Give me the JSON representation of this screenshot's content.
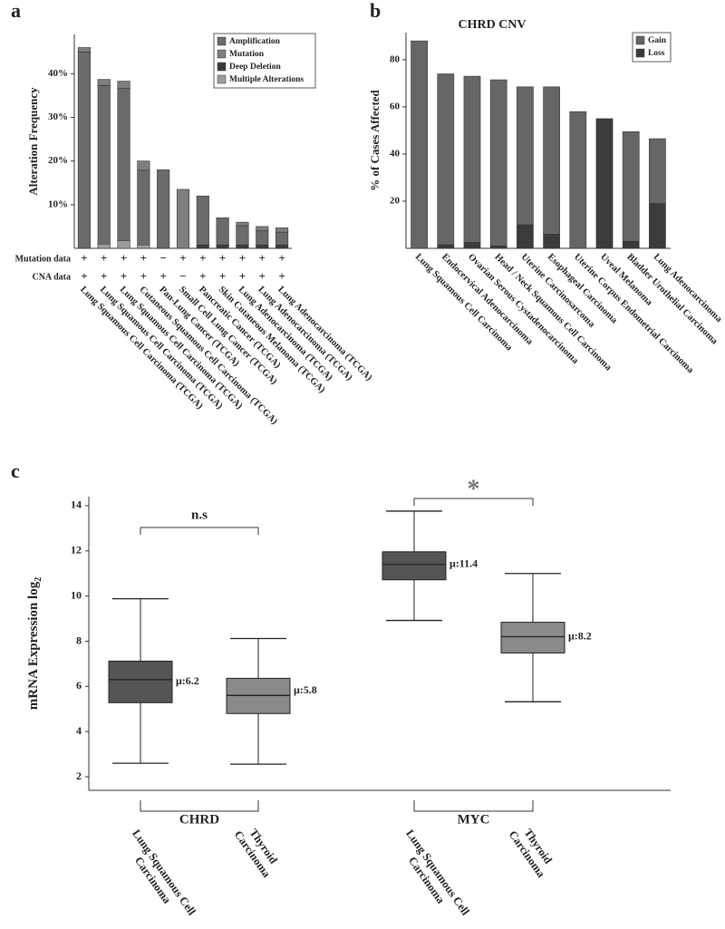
{
  "chart_data": [
    {
      "type": "stacked_bar",
      "panel": "a",
      "ylabel": "Alteration Frequency",
      "categories": [
        "Lung Squamous Cell Carcinoma (TCGA)",
        "Lung Squamous Cell Carcinoma (TCGA)",
        "Lung Squamous Cell Carcinoma (TCGA)",
        "Cutaneous Squamous Cell Carcinoma (TCGA)",
        "Pan-Lung Cancer (TCGA)",
        "Small Cell Lung Cancer (TCGA)",
        "Pancreatic Cancer (TCGA)",
        "Skin Cutaneous Melanoma (TCGA)",
        "Lung Adenocarcinoma (TCGA)",
        "Lung Adenocarcinoma (TCGA)",
        "Lung Adenocarcinoma (TCGA)"
      ],
      "series": [
        {
          "name": "Amplification",
          "color": "#6b6b6b",
          "values": [
            45,
            36.3,
            34.9,
            17.1,
            18,
            0,
            11.2,
            6.2,
            4.4,
            3.2,
            2.9
          ]
        },
        {
          "name": "Mutation",
          "color": "#7e7e7e",
          "values": [
            1,
            1.4,
            1.6,
            2.1,
            0,
            13.5,
            0,
            0,
            0.8,
            1,
            1
          ]
        },
        {
          "name": "Deep Deletion",
          "color": "#3c3c3c",
          "values": [
            0,
            0,
            0,
            0,
            0,
            0,
            0.8,
            0.8,
            0.8,
            0.8,
            0.8
          ]
        },
        {
          "name": "Multiple Alterations",
          "color": "#9c9c9c",
          "values": [
            0,
            1,
            1.8,
            0.8,
            0,
            0,
            0,
            0,
            0,
            0,
            0
          ]
        }
      ],
      "ylim": [
        0,
        49
      ],
      "yticks": [
        {
          "value": 10,
          "label": "10%"
        },
        {
          "value": 20,
          "label": "20%"
        },
        {
          "value": 30,
          "label": "30%"
        },
        {
          "value": 40,
          "label": "40%"
        }
      ],
      "annotation_rows": [
        {
          "label": "Mutation data",
          "marks": [
            "+",
            "+",
            "+",
            "+",
            "−",
            "+",
            "+",
            "+",
            "+",
            "+",
            "+"
          ]
        },
        {
          "label": "CNA data",
          "marks": [
            "+",
            "+",
            "+",
            "+",
            "+",
            "−",
            "+",
            "+",
            "+",
            "+",
            "+"
          ]
        }
      ],
      "legend": "upper right"
    },
    {
      "type": "stacked_bar",
      "panel": "b",
      "title": "CHRD CNV",
      "ylabel": "% of Cases Affected",
      "categories": [
        "Lung Squamous Cell Carcinoma",
        "Endocervical Adenocarcinoma",
        "Ovarian Serous Cystadenocarcinoma",
        "Head / Neck Squamous Cell Carcinoma",
        "Uterine Carcinosarcoma",
        "Esophageal Carcinoma",
        "Uterine Corpus Endometrial Carcinoma",
        "Uveal Melanoma",
        "Bladder Urothelial Carcinoma",
        "Lung Adenocarcinoma"
      ],
      "series": [
        {
          "name": "Gain",
          "color": "#666666",
          "values": [
            88,
            72.5,
            70.5,
            70.5,
            58.5,
            62.5,
            58,
            0,
            46.5,
            27.5
          ]
        },
        {
          "name": "Loss",
          "color": "#3b3b3b",
          "values": [
            0,
            1.5,
            2.5,
            1,
            10,
            6,
            0,
            55,
            3,
            19
          ]
        }
      ],
      "ylim": [
        0,
        91.5
      ],
      "yticks": [
        20,
        40,
        60,
        80
      ],
      "legend": "upper right"
    },
    {
      "type": "box",
      "panel": "c",
      "ylabel": "mRNA Expression log",
      "ylabel_sub": "2",
      "groups": [
        {
          "name": "CHRD",
          "significance": "n.s",
          "boxes": [
            {
              "label_lines": [
                "Lung Squamous Cell",
                "Carcinoma"
              ],
              "color": "#555555",
              "whislo": 2.6,
              "q1": 5.28,
              "med": 6.3,
              "q3": 7.12,
              "whishi": 9.88,
              "mean": 6.2,
              "mean_label": "μ:6.2"
            },
            {
              "label_lines": [
                "Thyroid",
                "Carcinoma"
              ],
              "color": "#8a8a8a",
              "whislo": 2.56,
              "q1": 4.8,
              "med": 5.6,
              "q3": 6.36,
              "whishi": 8.12,
              "mean": 5.8,
              "mean_label": "μ:5.8"
            }
          ]
        },
        {
          "name": "MYC",
          "significance": "*",
          "boxes": [
            {
              "label_lines": [
                "Lung Squamous Cell",
                "Carcinoma"
              ],
              "color": "#555555",
              "whislo": 8.92,
              "q1": 10.72,
              "med": 11.4,
              "q3": 11.96,
              "whishi": 13.76,
              "mean": 11.4,
              "mean_label": "μ:11.4"
            },
            {
              "label_lines": [
                "Thyroid",
                "Carcinoma"
              ],
              "color": "#8a8a8a",
              "whislo": 5.32,
              "q1": 7.48,
              "med": 8.2,
              "q3": 8.84,
              "whishi": 11.0,
              "mean": 8.2,
              "mean_label": "μ:8.2"
            }
          ]
        }
      ],
      "ylim": [
        1.4,
        14.4
      ],
      "yticks": [
        2,
        4,
        6,
        8,
        10,
        12,
        14
      ]
    }
  ]
}
